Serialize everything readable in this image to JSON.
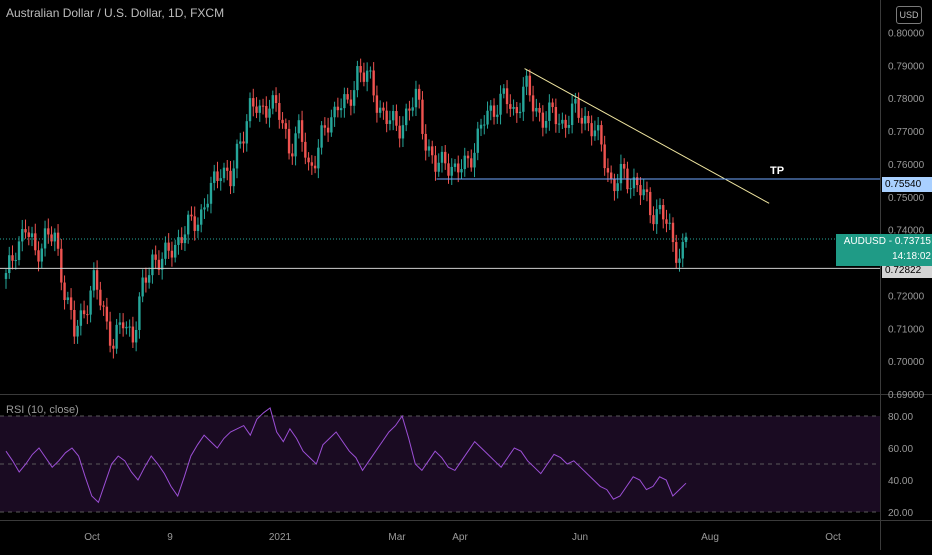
{
  "header": {
    "title": "Australian Dollar / U.S. Dollar, 1D, FXCM",
    "currency_button": "USD",
    "rsi_title": "RSI (10, close)"
  },
  "annotations": {
    "tp_label": "TP",
    "tp_level_text": "0.75540",
    "low_level_text": "0.72822",
    "symbol": "AUDUSD",
    "price_text": "0.73715",
    "countdown": "14:18:02"
  },
  "colors": {
    "up": "#26a69a",
    "down": "#ef5350",
    "rsi_line": "#9c4fd6",
    "rsi_band": "#1a0b22",
    "trendline": "#f0e6a0",
    "tp_line": "#6fa8ff",
    "support_line": "#cfcfcf",
    "price_badge": "#1f9b86"
  },
  "chart_data": [
    {
      "type": "candlestick",
      "title": "Australian Dollar / U.S. Dollar, 1D, FXCM",
      "ylim": [
        0.69,
        0.805
      ],
      "yticks": [
        "0.80000",
        "0.79000",
        "0.78000",
        "0.77000",
        "0.76000",
        "0.75000",
        "0.74000",
        "0.73000",
        "0.72000",
        "0.71000",
        "0.70000",
        "0.69000"
      ],
      "xticks": [
        "Oct",
        "9",
        "2021",
        "Mar",
        "Apr",
        "Jun",
        "Aug",
        "Oct"
      ],
      "close_path": [
        [
          0.725,
          0
        ],
        [
          0.735,
          4
        ],
        [
          0.74,
          8
        ],
        [
          0.733,
          12
        ],
        [
          0.738,
          16
        ],
        [
          0.737,
          20
        ],
        [
          0.722,
          24
        ],
        [
          0.708,
          28
        ],
        [
          0.716,
          32
        ],
        [
          0.724,
          36
        ],
        [
          0.715,
          40
        ],
        [
          0.705,
          44
        ],
        [
          0.712,
          48
        ],
        [
          0.708,
          52
        ],
        [
          0.722,
          56
        ],
        [
          0.732,
          60
        ],
        [
          0.73,
          64
        ],
        [
          0.735,
          68
        ],
        [
          0.738,
          72
        ],
        [
          0.742,
          76
        ],
        [
          0.745,
          80
        ],
        [
          0.752,
          84
        ],
        [
          0.76,
          88
        ],
        [
          0.754,
          92
        ],
        [
          0.768,
          96
        ],
        [
          0.778,
          100
        ],
        [
          0.775,
          104
        ],
        [
          0.78,
          108
        ],
        [
          0.774,
          112
        ],
        [
          0.765,
          116
        ],
        [
          0.77,
          120
        ],
        [
          0.758,
          124
        ],
        [
          0.766,
          128
        ],
        [
          0.772,
          132
        ],
        [
          0.78,
          136
        ],
        [
          0.776,
          140
        ],
        [
          0.79,
          144
        ],
        [
          0.786,
          148
        ],
        [
          0.778,
          152
        ],
        [
          0.774,
          156
        ],
        [
          0.77,
          160
        ],
        [
          0.776,
          164
        ],
        [
          0.78,
          168
        ],
        [
          0.766,
          172
        ],
        [
          0.758,
          176
        ],
        [
          0.762,
          180
        ],
        [
          0.757,
          184
        ],
        [
          0.76,
          188
        ],
        [
          0.766,
          192
        ],
        [
          0.774,
          196
        ],
        [
          0.778,
          200
        ],
        [
          0.78,
          204
        ],
        [
          0.775,
          208
        ],
        [
          0.784,
          212
        ],
        [
          0.777,
          216
        ],
        [
          0.774,
          220
        ],
        [
          0.775,
          224
        ],
        [
          0.772,
          228
        ],
        [
          0.776,
          232
        ],
        [
          0.775,
          236
        ],
        [
          0.77,
          240
        ],
        [
          0.765,
          244
        ],
        [
          0.752,
          248
        ],
        [
          0.757,
          252
        ],
        [
          0.755,
          256
        ],
        [
          0.751,
          260
        ],
        [
          0.746,
          264
        ],
        [
          0.745,
          268
        ],
        [
          0.738,
          272
        ],
        [
          0.731,
          276
        ],
        [
          0.737,
          278
        ]
      ],
      "candle_count": 210,
      "lines": [
        {
          "name": "trendline",
          "from": [
            212,
            0.789
          ],
          "to": [
            312,
            0.748
          ]
        },
        {
          "name": "tp_level",
          "value": 0.7554,
          "from": 176,
          "to": 355
        },
        {
          "name": "support_level",
          "value": 0.72822,
          "from": 0,
          "to": 355
        },
        {
          "name": "current_price",
          "value": 0.73715,
          "style": "dotted"
        }
      ]
    },
    {
      "type": "line",
      "title": "RSI (10, close)",
      "ylim": [
        15,
        90
      ],
      "yticks": [
        "80.00",
        "60.00",
        "40.00",
        "20.00"
      ],
      "band": [
        20,
        80
      ],
      "values": [
        58,
        52,
        45,
        50,
        56,
        60,
        54,
        48,
        52,
        57,
        60,
        55,
        42,
        30,
        26,
        38,
        50,
        55,
        52,
        45,
        40,
        48,
        55,
        50,
        44,
        36,
        30,
        42,
        55,
        62,
        68,
        64,
        60,
        66,
        70,
        72,
        74,
        68,
        78,
        82,
        85,
        70,
        64,
        72,
        66,
        58,
        54,
        50,
        62,
        66,
        70,
        64,
        58,
        54,
        46,
        52,
        58,
        64,
        70,
        74,
        80,
        66,
        50,
        46,
        52,
        58,
        54,
        48,
        46,
        52,
        58,
        64,
        60,
        56,
        52,
        48,
        54,
        60,
        58,
        52,
        48,
        44,
        50,
        56,
        54,
        50,
        52,
        48,
        44,
        40,
        36,
        34,
        28,
        30,
        36,
        42,
        40,
        34,
        36,
        42,
        40,
        30,
        34,
        38
      ]
    }
  ]
}
